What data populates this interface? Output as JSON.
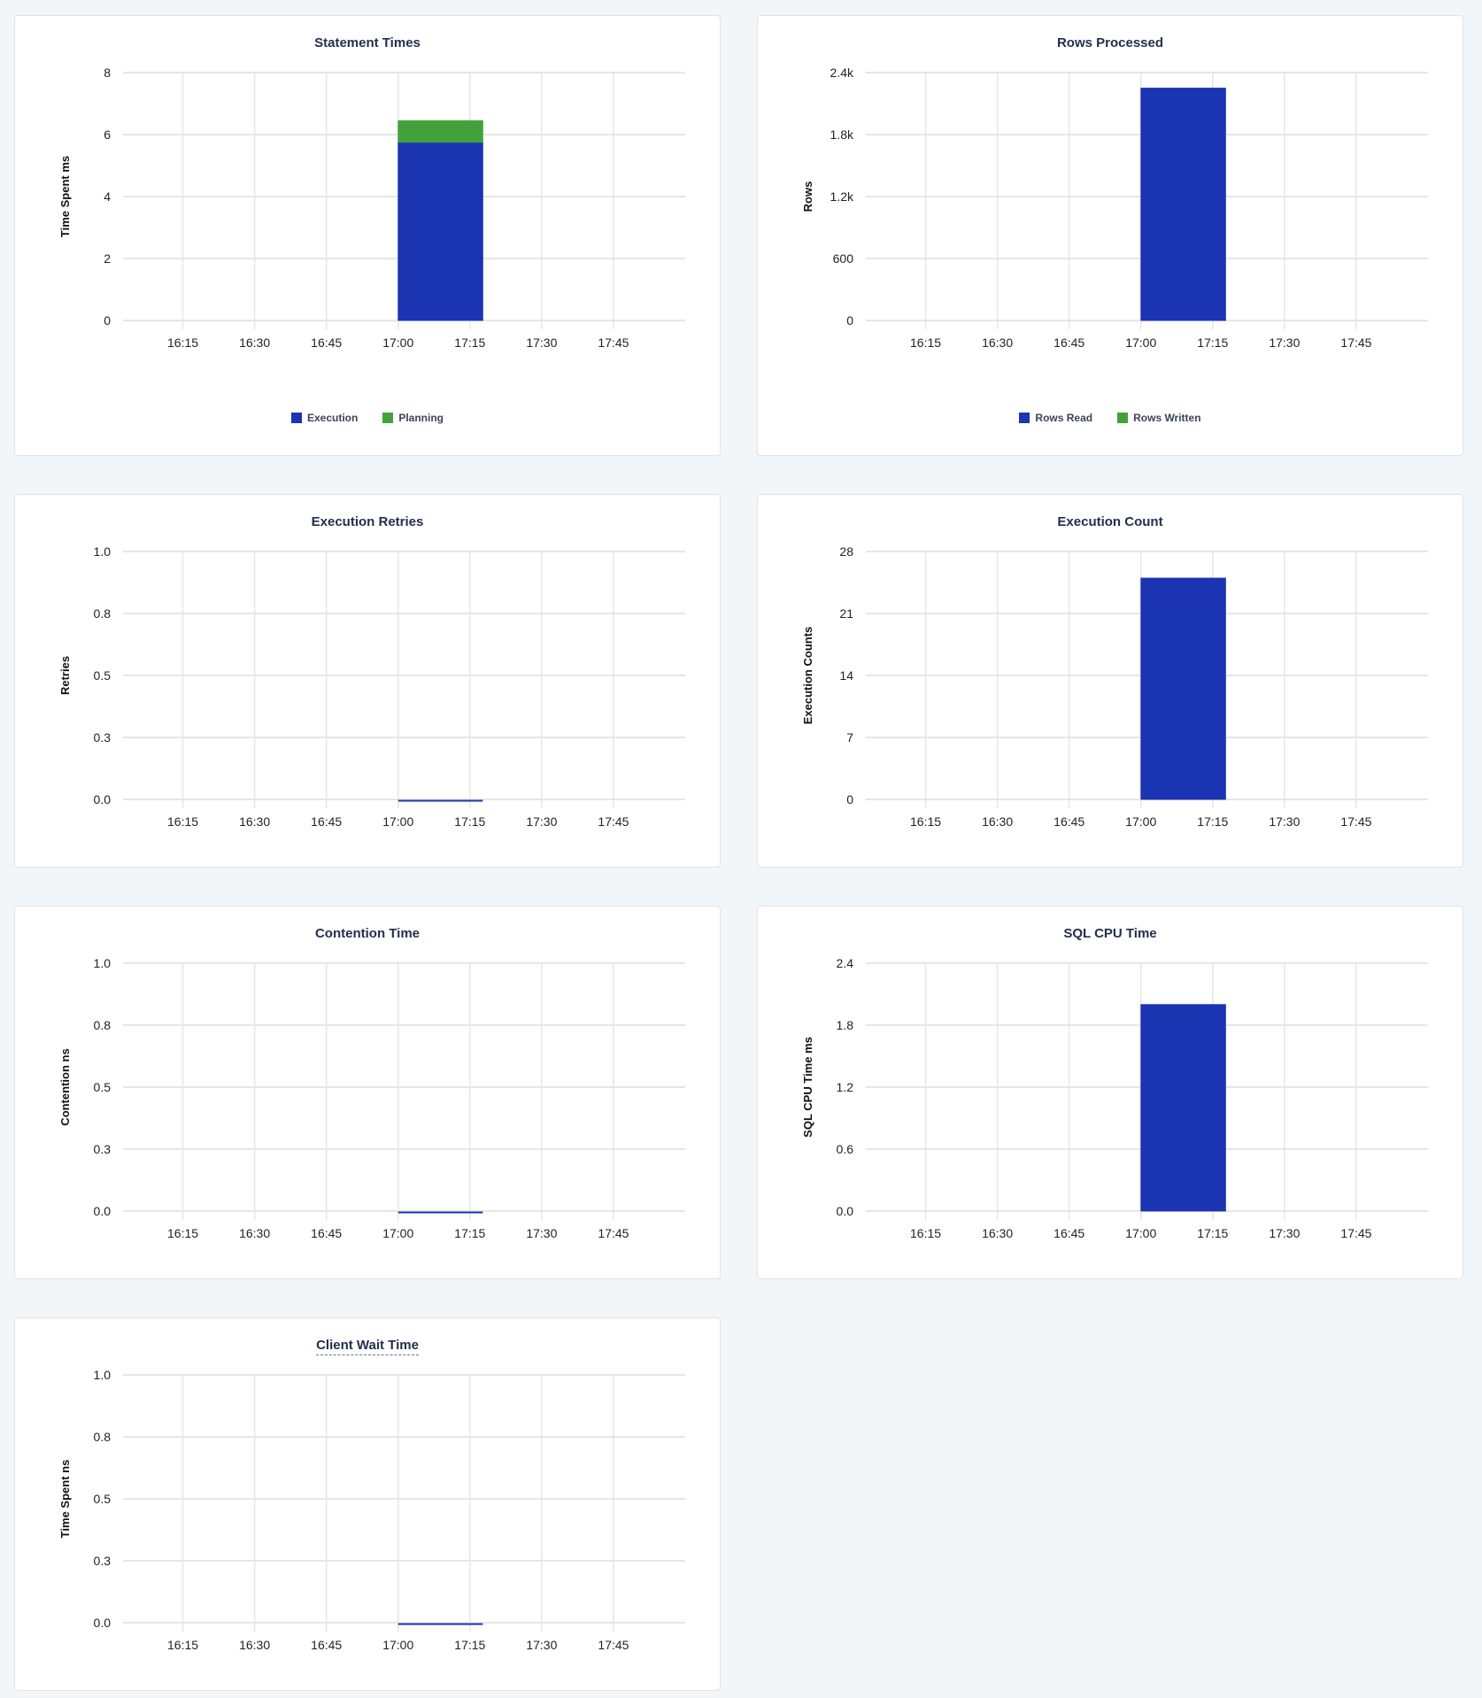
{
  "colors": {
    "blue": "#1b34b1",
    "green": "#43a13c",
    "grid": "#e6e6e6",
    "background": "#f3f6f9"
  },
  "chart_data": [
    {
      "type": "bar",
      "title": "Statement Times",
      "ylabel": "Time Spent ms",
      "x_ticks": [
        "16:15",
        "16:30",
        "16:45",
        "17:00",
        "17:15",
        "17:30",
        "17:45"
      ],
      "xlim": [
        "16:02:30",
        "18:00"
      ],
      "y_ticks": [
        "0",
        "2",
        "4",
        "6",
        "8"
      ],
      "ylim": [
        0,
        8
      ],
      "grid": true,
      "stacked": true,
      "legend": "bottom",
      "series": [
        {
          "name": "Execution",
          "color": "#1b34b1",
          "x": [
            "17:00"
          ],
          "values": [
            5.75
          ]
        },
        {
          "name": "Planning",
          "color": "#43a13c",
          "x": [
            "17:00"
          ],
          "values": [
            0.7
          ]
        }
      ]
    },
    {
      "type": "bar",
      "title": "Rows Processed",
      "ylabel": "Rows",
      "x_ticks": [
        "16:15",
        "16:30",
        "16:45",
        "17:00",
        "17:15",
        "17:30",
        "17:45"
      ],
      "xlim": [
        "16:02:30",
        "18:00"
      ],
      "y_ticks": [
        "0",
        "600",
        "1.2k",
        "1.8k",
        "2.4k"
      ],
      "ylim": [
        0,
        2400
      ],
      "grid": true,
      "stacked": true,
      "legend": "bottom",
      "series": [
        {
          "name": "Rows Read",
          "color": "#1b34b1",
          "x": [
            "17:00"
          ],
          "values": [
            2250
          ]
        },
        {
          "name": "Rows Written",
          "color": "#43a13c",
          "x": [
            "17:00"
          ],
          "values": [
            0
          ]
        }
      ]
    },
    {
      "type": "bar",
      "title": "Execution Retries",
      "ylabel": "Retries",
      "x_ticks": [
        "16:15",
        "16:30",
        "16:45",
        "17:00",
        "17:15",
        "17:30",
        "17:45"
      ],
      "xlim": [
        "16:02:30",
        "18:00"
      ],
      "y_ticks": [
        "0.0",
        "0.3",
        "0.5",
        "0.8",
        "1.0"
      ],
      "ylim": [
        0,
        1
      ],
      "grid": true,
      "series": [
        {
          "color": "#1b34b1",
          "x": [
            "17:00"
          ],
          "values": [
            0
          ]
        }
      ]
    },
    {
      "type": "bar",
      "title": "Execution Count",
      "ylabel": "Execution Counts",
      "x_ticks": [
        "16:15",
        "16:30",
        "16:45",
        "17:00",
        "17:15",
        "17:30",
        "17:45"
      ],
      "xlim": [
        "16:02:30",
        "18:00"
      ],
      "y_ticks": [
        "0",
        "7",
        "14",
        "21",
        "28"
      ],
      "ylim": [
        0,
        28
      ],
      "grid": true,
      "series": [
        {
          "color": "#1b34b1",
          "x": [
            "17:00"
          ],
          "values": [
            25
          ]
        }
      ]
    },
    {
      "type": "bar",
      "title": "Contention Time",
      "ylabel": "Contention ns",
      "x_ticks": [
        "16:15",
        "16:30",
        "16:45",
        "17:00",
        "17:15",
        "17:30",
        "17:45"
      ],
      "xlim": [
        "16:02:30",
        "18:00"
      ],
      "y_ticks": [
        "0.0",
        "0.3",
        "0.5",
        "0.8",
        "1.0"
      ],
      "ylim": [
        0,
        1
      ],
      "grid": true,
      "series": [
        {
          "color": "#1b34b1",
          "x": [
            "17:00"
          ],
          "values": [
            0
          ]
        }
      ]
    },
    {
      "type": "bar",
      "title": "SQL CPU Time",
      "ylabel": "SQL CPU Time ms",
      "x_ticks": [
        "16:15",
        "16:30",
        "16:45",
        "17:00",
        "17:15",
        "17:30",
        "17:45"
      ],
      "xlim": [
        "16:02:30",
        "18:00"
      ],
      "y_ticks": [
        "0.0",
        "0.6",
        "1.2",
        "1.8",
        "2.4"
      ],
      "ylim": [
        0,
        2.4
      ],
      "grid": true,
      "series": [
        {
          "color": "#1b34b1",
          "x": [
            "17:00"
          ],
          "values": [
            2.0
          ]
        }
      ]
    },
    {
      "type": "bar",
      "title": "Client Wait Time",
      "ylabel": "Time Spent ns",
      "x_ticks": [
        "16:15",
        "16:30",
        "16:45",
        "17:00",
        "17:15",
        "17:30",
        "17:45"
      ],
      "xlim": [
        "16:02:30",
        "18:00"
      ],
      "y_ticks": [
        "0.0",
        "0.3",
        "0.5",
        "0.8",
        "1.0"
      ],
      "ylim": [
        0,
        1
      ],
      "grid": true,
      "series": [
        {
          "color": "#1b34b1",
          "x": [
            "17:00"
          ],
          "values": [
            0
          ]
        }
      ]
    }
  ]
}
